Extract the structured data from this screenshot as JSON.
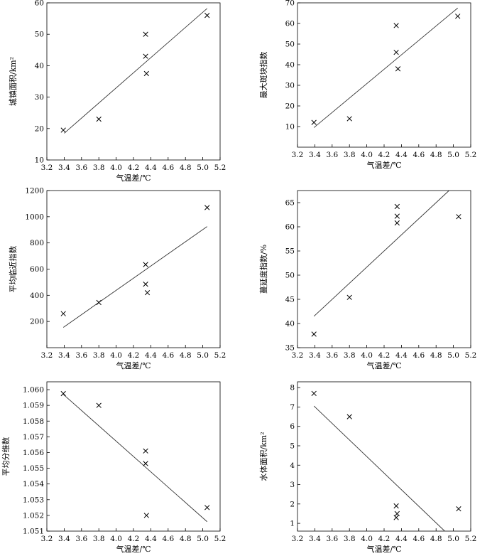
{
  "chart_data": [
    {
      "type": "scatter",
      "xlabel": "气温差/℃",
      "ylabel": "城镇面积/km²",
      "xlim": [
        3.2,
        5.2
      ],
      "ylim": [
        10,
        60
      ],
      "xticks": [
        "3.2",
        "3.4",
        "3.6",
        "3.8",
        "4.0",
        "4.2",
        "4.4",
        "4.6",
        "4.8",
        "5.0",
        "5.2"
      ],
      "yticks": [
        "10",
        "20",
        "30",
        "40",
        "50",
        "60"
      ],
      "points": [
        [
          3.39,
          19.5
        ],
        [
          3.8,
          23.0
        ],
        [
          4.34,
          50.0
        ],
        [
          4.34,
          43.0
        ],
        [
          4.35,
          37.5
        ],
        [
          5.05,
          56.0
        ]
      ],
      "fit_line": [
        [
          3.4,
          18.5
        ],
        [
          5.05,
          58.2
        ]
      ]
    },
    {
      "type": "scatter",
      "xlabel": "气温差/℃",
      "ylabel": "最大斑块指数",
      "xlim": [
        3.2,
        5.2
      ],
      "ylim": [
        0,
        70
      ],
      "xticks": [
        "3.2",
        "3.4",
        "3.6",
        "3.8",
        "4.0",
        "4.2",
        "4.4",
        "4.6",
        "4.8",
        "5.0",
        "5.2"
      ],
      "yticks": [
        "10",
        "20",
        "30",
        "40",
        "50",
        "60",
        "70"
      ],
      "points": [
        [
          3.39,
          12.0
        ],
        [
          3.8,
          13.8
        ],
        [
          4.34,
          59.0
        ],
        [
          4.34,
          46.0
        ],
        [
          4.36,
          38.0
        ],
        [
          5.05,
          63.5
        ]
      ],
      "fit_line": [
        [
          3.39,
          9.5
        ],
        [
          5.05,
          67.5
        ]
      ]
    },
    {
      "type": "scatter",
      "xlabel": "气温差/℃",
      "ylabel": "平均临近指数",
      "xlim": [
        3.2,
        5.2
      ],
      "ylim": [
        0,
        1200
      ],
      "xticks": [
        "3.2",
        "3.4",
        "3.6",
        "3.8",
        "4.0",
        "4.2",
        "4.4",
        "4.6",
        "4.8",
        "5.0",
        "5.2"
      ],
      "yticks": [
        "200",
        "400",
        "600",
        "800",
        "1000",
        "1200"
      ],
      "points": [
        [
          3.39,
          260
        ],
        [
          3.8,
          345
        ],
        [
          4.34,
          635
        ],
        [
          4.34,
          485
        ],
        [
          4.36,
          420
        ],
        [
          5.05,
          1070
        ]
      ],
      "fit_line": [
        [
          3.39,
          155
        ],
        [
          5.05,
          925
        ]
      ]
    },
    {
      "type": "scatter",
      "xlabel": "气温差/℃",
      "ylabel": "蔓延度指数/%",
      "xlim": [
        3.2,
        5.2
      ],
      "ylim": [
        35,
        67.5
      ],
      "xticks": [
        "3.2",
        "3.4",
        "3.6",
        "3.8",
        "4.0",
        "4.2",
        "4.4",
        "4.6",
        "4.8",
        "5.0",
        "5.2"
      ],
      "yticks": [
        "35",
        "40",
        "45",
        "50",
        "55",
        "60",
        "65"
      ],
      "points": [
        [
          3.39,
          37.8
        ],
        [
          3.8,
          45.4
        ],
        [
          4.35,
          64.2
        ],
        [
          4.35,
          62.2
        ],
        [
          4.35,
          60.8
        ],
        [
          5.06,
          62.1
        ]
      ],
      "fit_line": [
        [
          3.39,
          41.5
        ],
        [
          4.95,
          67.5
        ]
      ]
    },
    {
      "type": "scatter",
      "xlabel": "气温差/℃",
      "ylabel": "平均分维数",
      "xlim": [
        3.2,
        5.2
      ],
      "ylim": [
        1.051,
        1.0605
      ],
      "xticks": [
        "3.2",
        "3.4",
        "3.6",
        "3.8",
        "4.0",
        "4.2",
        "4.4",
        "4.6",
        "4.8",
        "5.0",
        "5.2"
      ],
      "yticks": [
        "1.051",
        "1.052",
        "1.053",
        "1.054",
        "1.055",
        "1.056",
        "1.057",
        "1.058",
        "1.059",
        "1.060"
      ],
      "points": [
        [
          3.39,
          1.05975
        ],
        [
          3.8,
          1.059
        ],
        [
          4.34,
          1.0561
        ],
        [
          4.34,
          1.0553
        ],
        [
          4.35,
          1.052
        ],
        [
          5.05,
          1.0525
        ]
      ],
      "fit_line": [
        [
          3.39,
          1.0597
        ],
        [
          5.05,
          1.0516
        ]
      ]
    },
    {
      "type": "scatter",
      "xlabel": "气温差/℃",
      "ylabel": "水体面积/km²",
      "xlim": [
        3.2,
        5.2
      ],
      "ylim": [
        0.6,
        8.3
      ],
      "xticks": [
        "3.2",
        "3.4",
        "3.6",
        "3.8",
        "4.0",
        "4.2",
        "4.4",
        "4.6",
        "4.8",
        "5.0",
        "5.2"
      ],
      "yticks": [
        "1",
        "2",
        "3",
        "4",
        "5",
        "6",
        "7",
        "8"
      ],
      "points": [
        [
          3.39,
          7.7
        ],
        [
          3.8,
          6.5
        ],
        [
          4.34,
          1.9
        ],
        [
          4.35,
          1.5
        ],
        [
          4.34,
          1.3
        ],
        [
          5.06,
          1.75
        ]
      ],
      "fit_line": [
        [
          3.39,
          7.05
        ],
        [
          4.9,
          0.6
        ]
      ]
    }
  ]
}
